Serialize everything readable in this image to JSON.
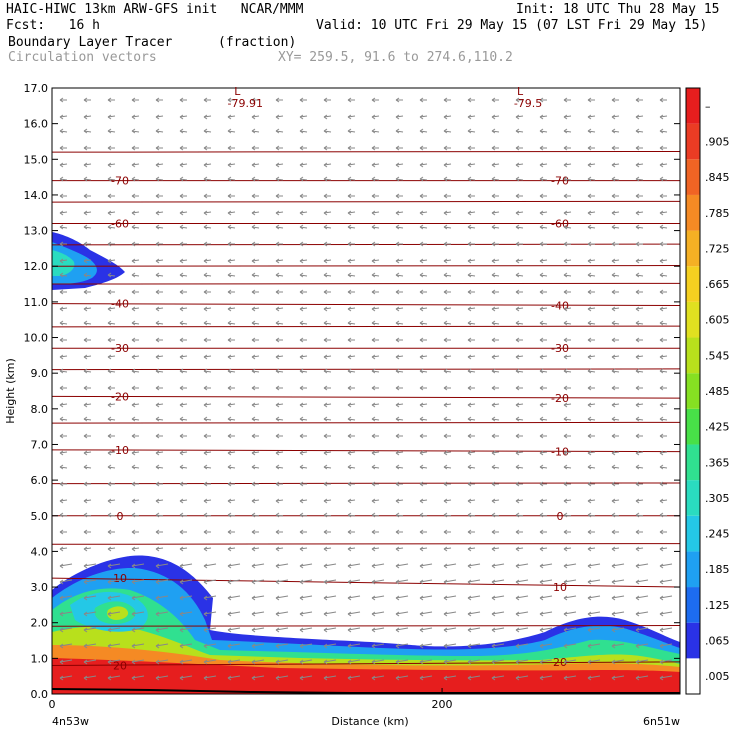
{
  "header": {
    "title_left": "HAIC-HIWC 13km ARW-GFS init   NCAR/MMM",
    "init": "Init: 18 UTC Thu 28 May 15",
    "fcst": "Fcst:   16 h",
    "valid": "Valid: 10 UTC Fri 29 May 15 (07 LST Fri 29 May 15)",
    "field_name": "Boundary Layer Tracer",
    "field_units": "(fraction)",
    "vectors_label": "Circulation vectors",
    "xy_label": "XY= 259.5, 91.6 to 274.6,110.2"
  },
  "chart_data": {
    "type": "heatmap",
    "xlabel": "Distance (km)",
    "ylabel": "Height (km)",
    "xlim": [
      0,
      322
    ],
    "ylim": [
      0,
      17
    ],
    "x_ticks": [
      {
        "value": 0,
        "label": "0"
      },
      {
        "value": 200,
        "label": "200"
      }
    ],
    "x_end_labels": {
      "left": "4n53w",
      "right": "6n51w"
    },
    "y_ticks": [
      "0.0",
      "1.0",
      "2.0",
      "3.0",
      "4.0",
      "5.0",
      "6.0",
      "7.0",
      "8.0",
      "9.0",
      "10.0",
      "11.0",
      "12.0",
      "13.0",
      "14.0",
      "15.0",
      "16.0",
      "17.0"
    ],
    "colorbar": {
      "colors": [
        "#ffffff",
        "#2a32e6",
        "#1d6cf0",
        "#1fa0f2",
        "#24c8e6",
        "#2adcc0",
        "#30e090",
        "#48e048",
        "#86e022",
        "#b8e01c",
        "#e0e020",
        "#f5d020",
        "#f5b024",
        "#f58a24",
        "#f06424",
        "#eb3c24",
        "#e61e1e"
      ],
      "labels": [
        ".005",
        ".065",
        ".125",
        ".185",
        ".245",
        ".305",
        ".365",
        ".425",
        ".485",
        ".545",
        ".605",
        ".665",
        ".725",
        ".785",
        ".845",
        ".905",
        "–"
      ]
    },
    "temperature_contours": [
      {
        "value": "20",
        "height_km": 0.9
      },
      {
        "value": "10",
        "height_km": 3.1
      },
      {
        "value": "0",
        "height_km": 5.0
      },
      {
        "value": "-10",
        "height_km": 6.8
      },
      {
        "value": "-20",
        "height_km": 8.3
      },
      {
        "value": "-30",
        "height_km": 9.7
      },
      {
        "value": "-40",
        "height_km": 10.9
      },
      {
        "value": "-60",
        "height_km": 13.2
      },
      {
        "value": "-70",
        "height_km": 14.4
      }
    ],
    "lows": [
      {
        "label": "L",
        "value": "-79.91",
        "distance_km": 95,
        "height_km": 16.8
      },
      {
        "label": "L",
        "value": "-79.5",
        "distance_km": 240,
        "height_km": 16.8
      }
    ]
  }
}
